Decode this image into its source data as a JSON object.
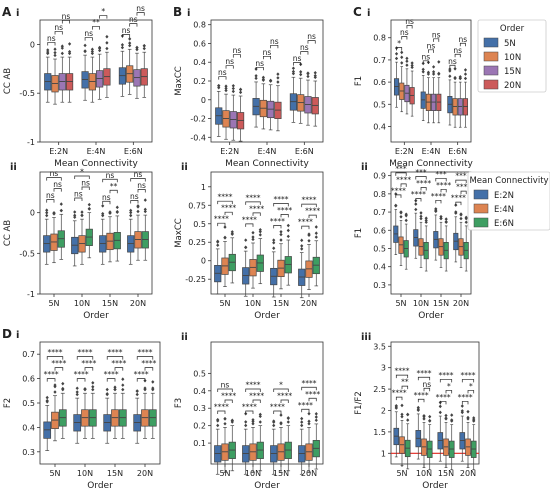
{
  "palettes": {
    "order": [
      "#4470a8",
      "#dd8452",
      "#9b76b4",
      "#cc5a5a"
    ],
    "conn": [
      "#4470a8",
      "#dd8452",
      "#3e9e62"
    ]
  },
  "legends": [
    {
      "title": "Order",
      "items": [
        "5N",
        "10N",
        "15N",
        "20N"
      ],
      "palette": "order"
    },
    {
      "title": "Mean Connectivity",
      "items": [
        "E:2N",
        "E:4N",
        "E:6N"
      ],
      "palette": "conn"
    }
  ],
  "chart_data": [
    {
      "type": "box",
      "label": "A",
      "sub": "i",
      "ylabel": "CC AB",
      "xlabel": "Mean Connectivity",
      "categories": [
        "E:2N",
        "E:4N",
        "E:6N"
      ],
      "series_names": [
        "5N",
        "10N",
        "15N",
        "20N"
      ],
      "palette": "order",
      "ylim": [
        -1.0,
        0.25
      ],
      "yticks": [
        -1.0,
        -0.5,
        0.0
      ],
      "medians": [
        [
          -0.38,
          -0.4,
          -0.38,
          -0.38
        ],
        [
          -0.36,
          -0.38,
          -0.35,
          -0.33
        ],
        [
          -0.32,
          -0.3,
          -0.34,
          -0.33
        ]
      ],
      "sig": [
        [
          "ns",
          "ns",
          "ns"
        ],
        [
          "ns",
          "**",
          "*"
        ],
        [
          "ns",
          "ns",
          "ns"
        ]
      ]
    },
    {
      "type": "box",
      "label": "B",
      "sub": "i",
      "ylabel": "MaxCC",
      "xlabel": "Mean Connectivity",
      "categories": [
        "E:2N",
        "E:4N",
        "E:6N"
      ],
      "series_names": [
        "5N",
        "10N",
        "15N",
        "20N"
      ],
      "palette": "order",
      "ylim": [
        -0.45,
        0.85
      ],
      "yticks": [
        -0.4,
        -0.2,
        0.0,
        0.2,
        0.4,
        0.6,
        0.8
      ],
      "medians": [
        [
          -0.17,
          -0.2,
          -0.21,
          -0.22
        ],
        [
          -0.07,
          -0.09,
          -0.1,
          -0.11
        ],
        [
          -0.02,
          -0.03,
          -0.05,
          -0.06
        ]
      ],
      "sig": [
        [
          "ns",
          "ns",
          "ns"
        ],
        [
          "ns",
          "ns",
          "ns"
        ],
        [
          "ns",
          "ns",
          "ns"
        ]
      ]
    },
    {
      "type": "box",
      "label": "C",
      "sub": "i",
      "ylabel": "F1",
      "xlabel": "Mean Connectivity",
      "categories": [
        "E:2N",
        "E:4N",
        "E:6N"
      ],
      "series_names": [
        "5N",
        "10N",
        "15N",
        "20N"
      ],
      "palette": "order",
      "ylim": [
        0.33,
        0.88
      ],
      "yticks": [
        0.4,
        0.5,
        0.6,
        0.7,
        0.8
      ],
      "medians": [
        [
          0.58,
          0.56,
          0.55,
          0.54
        ],
        [
          0.52,
          0.51,
          0.51,
          0.51
        ],
        [
          0.5,
          0.49,
          0.49,
          0.49
        ]
      ],
      "sig": [
        [
          "*",
          "ns",
          "ns"
        ],
        [
          "ns",
          "ns",
          "ns"
        ],
        [
          "ns",
          "ns",
          "ns"
        ]
      ]
    },
    {
      "type": "box",
      "label": "",
      "sub": "ii",
      "ylabel": "CC AB",
      "xlabel": "Order",
      "categories": [
        "5N",
        "10N",
        "15N",
        "20N"
      ],
      "series_names": [
        "E:2N",
        "E:4N",
        "E:6N"
      ],
      "palette": "conn",
      "ylim": [
        -1.0,
        0.5
      ],
      "yticks": [
        -1.0,
        -0.5,
        0.0
      ],
      "medians": [
        [
          -0.38,
          -0.36,
          -0.32
        ],
        [
          -0.4,
          -0.38,
          -0.3
        ],
        [
          -0.38,
          -0.35,
          -0.34
        ],
        [
          -0.38,
          -0.33,
          -0.33
        ]
      ],
      "sig": [
        [
          "ns",
          "ns",
          "ns"
        ],
        [
          "ns",
          "ns",
          "*"
        ],
        [
          "ns",
          "**",
          "ns"
        ],
        [
          "ns",
          "ns",
          "ns"
        ]
      ]
    },
    {
      "type": "box",
      "label": "",
      "sub": "ii",
      "ylabel": "MaxCC",
      "xlabel": "Order",
      "categories": [
        "5N",
        "10N",
        "15N",
        "20N"
      ],
      "series_names": [
        "E:2N",
        "E:4N",
        "E:6N"
      ],
      "palette": "conn",
      "ylim": [
        -0.45,
        1.2
      ],
      "yticks": [
        -0.25,
        0.0,
        0.25,
        0.5,
        0.75,
        1.0
      ],
      "medians": [
        [
          -0.17,
          -0.07,
          -0.02
        ],
        [
          -0.2,
          -0.09,
          -0.03
        ],
        [
          -0.21,
          -0.1,
          -0.05
        ],
        [
          -0.22,
          -0.11,
          -0.06
        ]
      ],
      "sig": [
        [
          "****",
          "****",
          "****"
        ],
        [
          "****",
          "****",
          "****"
        ],
        [
          "****",
          "****",
          "****"
        ],
        [
          "****",
          "****",
          "****"
        ]
      ]
    },
    {
      "type": "box",
      "label": "",
      "sub": "ii",
      "ylabel": "F1",
      "xlabel": "Order",
      "categories": [
        "5N",
        "10N",
        "15N",
        "20N"
      ],
      "series_names": [
        "E:2N",
        "E:4N",
        "E:6N"
      ],
      "palette": "conn",
      "ylim": [
        0.25,
        0.92
      ],
      "yticks": [
        0.3,
        0.4,
        0.5,
        0.6,
        0.7,
        0.8,
        0.9
      ],
      "medians": [
        [
          0.58,
          0.52,
          0.5
        ],
        [
          0.56,
          0.51,
          0.49
        ],
        [
          0.55,
          0.51,
          0.49
        ],
        [
          0.54,
          0.51,
          0.49
        ]
      ],
      "sig": [
        [
          "****",
          "****",
          "***"
        ],
        [
          "****",
          "****",
          "***"
        ],
        [
          "****",
          "****",
          "***"
        ],
        [
          "****",
          "****",
          "***"
        ]
      ]
    },
    {
      "type": "box",
      "label": "D",
      "sub": "i",
      "ylabel": "F2",
      "xlabel": "Order",
      "categories": [
        "5N",
        "10N",
        "15N",
        "20N"
      ],
      "series_names": [
        "E:2N",
        "E:4N",
        "E:6N"
      ],
      "palette": "conn",
      "ylim": [
        0.25,
        0.75
      ],
      "yticks": [
        0.3,
        0.4,
        0.5,
        0.6,
        0.7
      ],
      "medians": [
        [
          0.39,
          0.43,
          0.44
        ],
        [
          0.42,
          0.44,
          0.44
        ],
        [
          0.42,
          0.44,
          0.44
        ],
        [
          0.42,
          0.44,
          0.44
        ]
      ],
      "sig": [
        [
          "****",
          "****",
          "****"
        ],
        [
          "****",
          "****",
          "****"
        ],
        [
          "****",
          "****",
          "****"
        ],
        [
          "****",
          "****",
          "****"
        ]
      ]
    },
    {
      "type": "box",
      "label": "",
      "sub": "ii",
      "ylabel": "F3",
      "xlabel": "Order",
      "categories": [
        "5N",
        "10N",
        "15N",
        "20N"
      ],
      "series_names": [
        "E:2N",
        "E:4N",
        "E:6N"
      ],
      "palette": "conn",
      "ylim": [
        -0.02,
        0.68
      ],
      "yticks": [
        0.1,
        0.2,
        0.3,
        0.4,
        0.5
      ],
      "medians": [
        [
          0.04,
          0.05,
          0.06
        ],
        [
          0.04,
          0.05,
          0.06
        ],
        [
          0.04,
          0.05,
          0.06
        ],
        [
          0.04,
          0.05,
          0.07
        ]
      ],
      "sig": [
        [
          "****",
          "****",
          "ns"
        ],
        [
          "****",
          "****",
          "****"
        ],
        [
          "****",
          "****",
          "*"
        ],
        [
          "****",
          "****",
          "****"
        ]
      ]
    },
    {
      "type": "box",
      "label": "",
      "sub": "iii",
      "ylabel": "F1/F2",
      "xlabel": "Order",
      "categories": [
        "5N",
        "10N",
        "15N",
        "20N"
      ],
      "series_names": [
        "E:2N",
        "E:4N",
        "E:6N"
      ],
      "palette": "conn",
      "ylim": [
        0.75,
        3.6
      ],
      "yticks": [
        1.0,
        1.5,
        2.0,
        2.5,
        3.0,
        3.5
      ],
      "refline": 1.0,
      "medians": [
        [
          1.4,
          1.2,
          1.12
        ],
        [
          1.35,
          1.15,
          1.1
        ],
        [
          1.3,
          1.15,
          1.1
        ],
        [
          1.3,
          1.15,
          1.1
        ]
      ],
      "sig": [
        [
          "****",
          "**",
          "****"
        ],
        [
          "****",
          "ns",
          "****"
        ],
        [
          "****",
          "*",
          "****"
        ],
        [
          "****",
          "*",
          "****"
        ]
      ]
    }
  ]
}
